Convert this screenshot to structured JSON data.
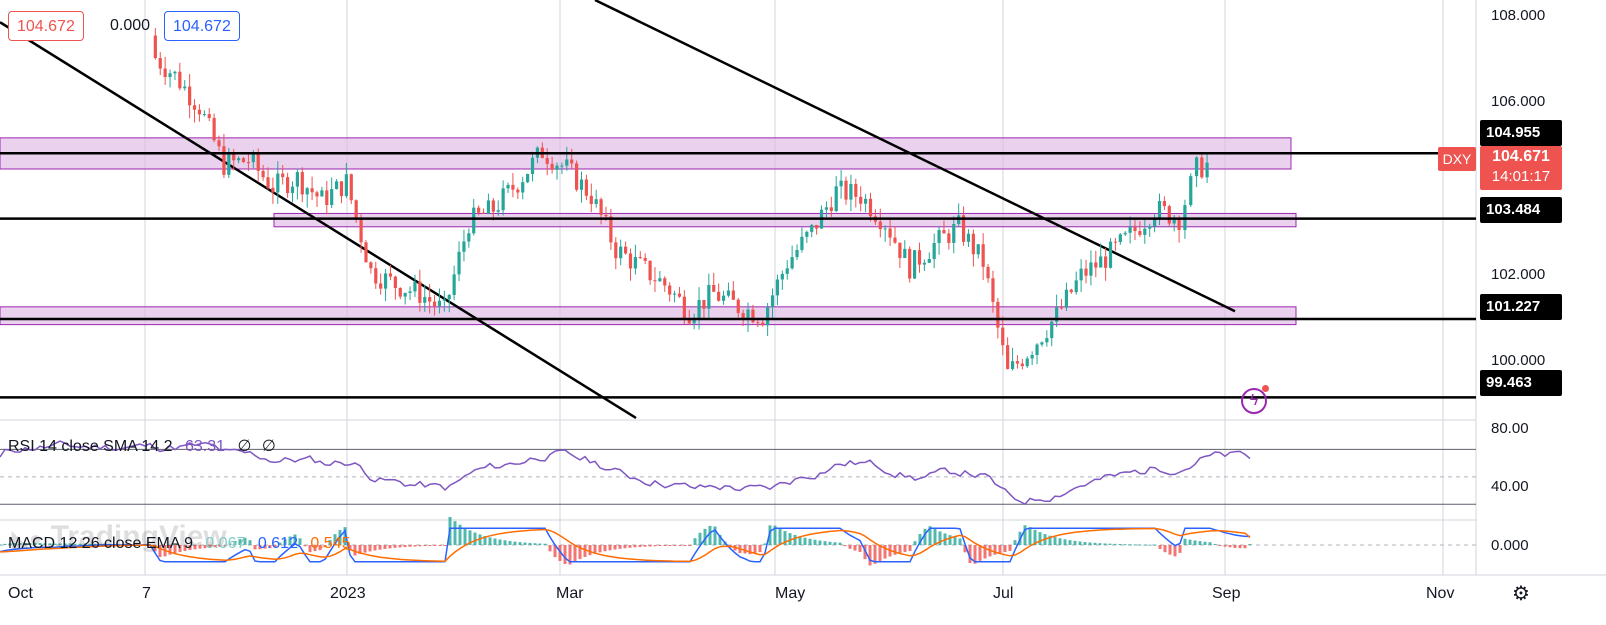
{
  "header": {
    "left_value": "104.672",
    "change": "0.000",
    "right_value": "104.672"
  },
  "symbol": {
    "name": "DXY",
    "price": "104.671",
    "countdown": "14:01:17",
    "color": "#ef5350"
  },
  "price_axis": {
    "ticks": [
      "108.000",
      "106.000",
      "102.000",
      "100.000"
    ],
    "marked_levels": [
      "104.955",
      "103.484",
      "101.227",
      "99.463"
    ]
  },
  "time_axis": {
    "ticks": [
      "Oct",
      "7",
      "2023",
      "Mar",
      "May",
      "Jul",
      "Sep",
      "Nov"
    ]
  },
  "rsi": {
    "label": "RSI 14 close SMA 14 2",
    "value": "63.31",
    "extra1": "∅",
    "extra2": "∅",
    "ticks": [
      "80.00",
      "40.00"
    ],
    "color": "#7e57c2"
  },
  "macd": {
    "label": "MACD 12 26 close EMA 9",
    "hist": "0.067",
    "macd_value": "0.612",
    "signal_value": "0.545",
    "tick": "0.000",
    "macd_color": "#2962ff",
    "signal_color": "#ff6d00"
  },
  "watermark": "TradingView",
  "colors": {
    "up": "#26a69a",
    "down": "#ef5350",
    "zone_fill": "#e1bee7",
    "zone_border": "#9c27b0"
  },
  "chart_data": {
    "type": "candlestick",
    "title": "DXY",
    "ylim": [
      99.0,
      108.4
    ],
    "x_range": [
      "2022-09-28",
      "2023-11-15"
    ],
    "closes": [
      {
        "x": "2022-11-10",
        "y": 107.2
      },
      {
        "x": "2022-11-17",
        "y": 106.7
      },
      {
        "x": "2022-11-24",
        "y": 106.0
      },
      {
        "x": "2022-12-01",
        "y": 104.7
      },
      {
        "x": "2022-12-08",
        "y": 104.8
      },
      {
        "x": "2022-12-15",
        "y": 104.2
      },
      {
        "x": "2022-12-22",
        "y": 104.4
      },
      {
        "x": "2022-12-29",
        "y": 103.9
      },
      {
        "x": "2023-01-05",
        "y": 104.3
      },
      {
        "x": "2023-01-12",
        "y": 102.3
      },
      {
        "x": "2023-01-19",
        "y": 102.0
      },
      {
        "x": "2023-01-26",
        "y": 101.8
      },
      {
        "x": "2023-02-02",
        "y": 101.4
      },
      {
        "x": "2023-02-09",
        "y": 103.4
      },
      {
        "x": "2023-02-16",
        "y": 103.7
      },
      {
        "x": "2023-02-23",
        "y": 104.3
      },
      {
        "x": "2023-03-02",
        "y": 105.0
      },
      {
        "x": "2023-03-09",
        "y": 104.6
      },
      {
        "x": "2023-03-16",
        "y": 104.0
      },
      {
        "x": "2023-03-23",
        "y": 102.8
      },
      {
        "x": "2023-03-30",
        "y": 102.4
      },
      {
        "x": "2023-04-06",
        "y": 102.0
      },
      {
        "x": "2023-04-13",
        "y": 101.4
      },
      {
        "x": "2023-04-20",
        "y": 101.8
      },
      {
        "x": "2023-04-27",
        "y": 101.5
      },
      {
        "x": "2023-05-04",
        "y": 101.3
      },
      {
        "x": "2023-05-11",
        "y": 102.5
      },
      {
        "x": "2023-05-18",
        "y": 103.2
      },
      {
        "x": "2023-05-25",
        "y": 104.1
      },
      {
        "x": "2023-06-01",
        "y": 104.0
      },
      {
        "x": "2023-06-08",
        "y": 103.4
      },
      {
        "x": "2023-06-15",
        "y": 102.4
      },
      {
        "x": "2023-06-22",
        "y": 102.9
      },
      {
        "x": "2023-06-29",
        "y": 103.3
      },
      {
        "x": "2023-07-06",
        "y": 102.5
      },
      {
        "x": "2023-07-13",
        "y": 100.0
      },
      {
        "x": "2023-07-20",
        "y": 100.6
      },
      {
        "x": "2023-07-27",
        "y": 101.3
      },
      {
        "x": "2023-08-03",
        "y": 102.2
      },
      {
        "x": "2023-08-10",
        "y": 102.6
      },
      {
        "x": "2023-08-17",
        "y": 103.1
      },
      {
        "x": "2023-08-24",
        "y": 103.7
      },
      {
        "x": "2023-08-31",
        "y": 103.5
      },
      {
        "x": "2023-09-05",
        "y": 104.6
      },
      {
        "x": "2023-09-08",
        "y": 104.7
      }
    ],
    "horizontal_levels": [
      104.955,
      103.484,
      101.227,
      99.463
    ],
    "support_resistance_zones": [
      [
        104.6,
        105.3
      ],
      [
        103.3,
        103.6
      ],
      [
        101.1,
        101.5
      ]
    ],
    "rsi_last": 63.31,
    "macd_last": {
      "histogram": 0.067,
      "macd": 0.612,
      "signal": 0.545
    }
  }
}
